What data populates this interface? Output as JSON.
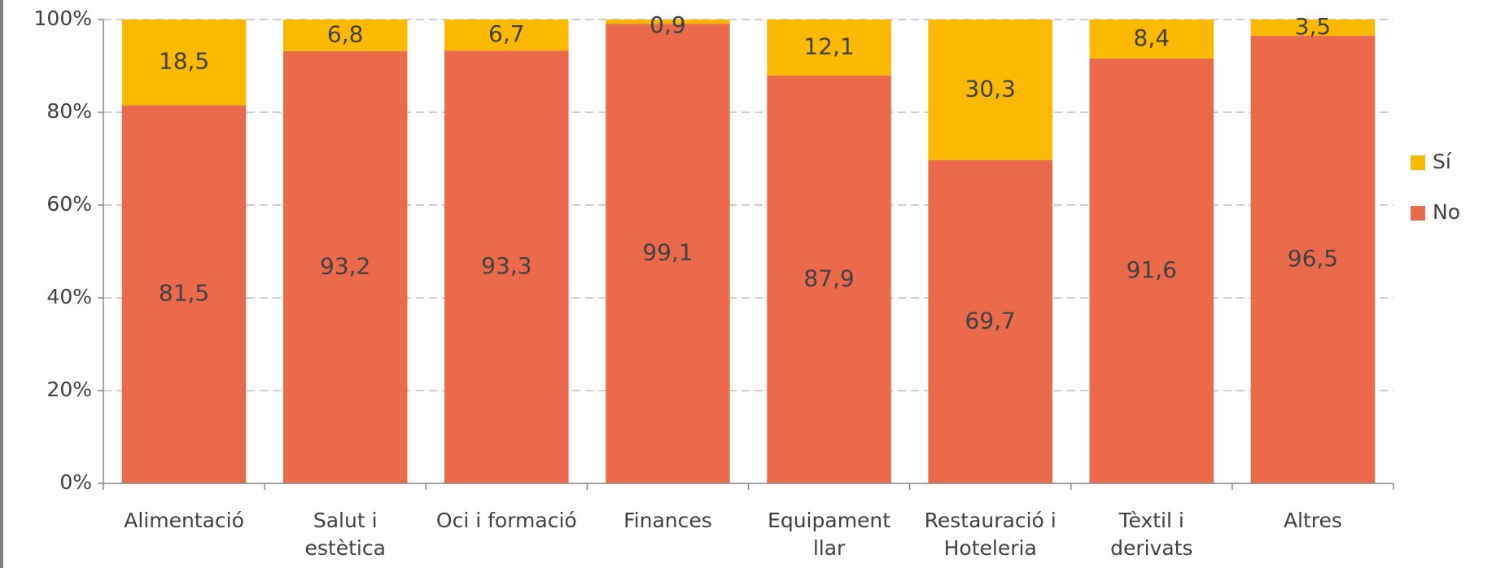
{
  "chart_data": {
    "type": "stacked_bar",
    "categories": [
      [
        "Alimentació"
      ],
      [
        "Salut i",
        "estètica"
      ],
      [
        "Oci i formació"
      ],
      [
        "Finances"
      ],
      [
        "Equipament",
        "llar"
      ],
      [
        "Restauració i",
        "Hoteleria"
      ],
      [
        "Tèxtil i",
        "derivats"
      ],
      [
        "Altres"
      ]
    ],
    "series": [
      {
        "name": "No",
        "color": "#EC6A4C",
        "values": [
          81.5,
          93.2,
          93.3,
          99.1,
          87.9,
          69.7,
          91.6,
          96.5
        ],
        "value_labels": [
          "81,5",
          "93,2",
          "93,3",
          "99,1",
          "87,9",
          "69,7",
          "91,6",
          "96,5"
        ]
      },
      {
        "name": "Sí",
        "color": "#FBBA00",
        "values": [
          18.5,
          6.8,
          6.7,
          0.9,
          12.1,
          30.3,
          8.4,
          3.5
        ],
        "value_labels": [
          "18,5",
          "6,8",
          "6,7",
          "0,9",
          "12,1",
          "30,3",
          "8,4",
          "3,5"
        ]
      }
    ],
    "ylim": [
      0,
      100
    ],
    "yticks": [
      {
        "value": 0,
        "label": "0%"
      },
      {
        "value": 20,
        "label": "20%"
      },
      {
        "value": 40,
        "label": "40%"
      },
      {
        "value": 60,
        "label": "60%"
      },
      {
        "value": 80,
        "label": "80%"
      },
      {
        "value": 100,
        "label": "100%"
      }
    ],
    "grid": true,
    "legend": "right"
  }
}
